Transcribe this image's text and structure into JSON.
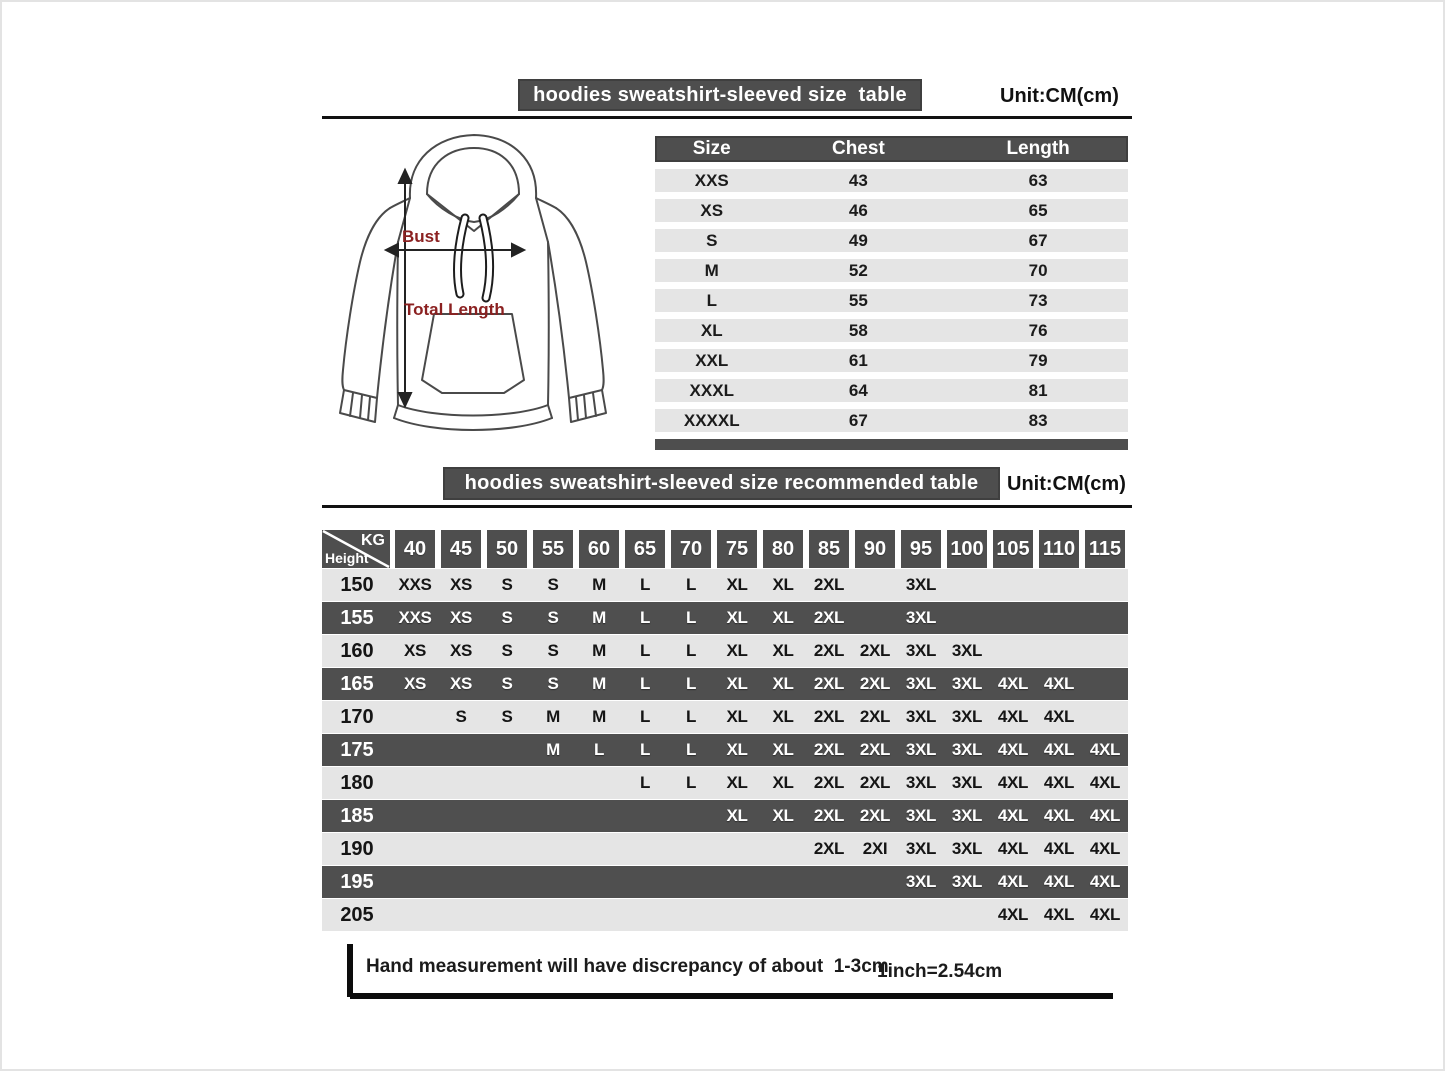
{
  "colors": {
    "bar_dark": "#4e4e4e",
    "row_light": "#e5e5e5",
    "row_dark": "#4f4f4f",
    "accent_red": "#8b2121",
    "line_black": "#111111"
  },
  "size_table_section": {
    "title": "hoodies sweatshirt-sleeved size  table",
    "unit": "Unit:CM(cm)",
    "columns": [
      "Size",
      "Chest",
      "Length"
    ],
    "rows": [
      [
        "XXS",
        "43",
        "63"
      ],
      [
        "XS",
        "46",
        "65"
      ],
      [
        "S",
        "49",
        "67"
      ],
      [
        "M",
        "52",
        "70"
      ],
      [
        "L",
        "55",
        "73"
      ],
      [
        "XL",
        "58",
        "76"
      ],
      [
        "XXL",
        "61",
        "79"
      ],
      [
        "XXXL",
        "64",
        "81"
      ],
      [
        "XXXXL",
        "67",
        "83"
      ]
    ]
  },
  "diagram": {
    "bust_label": "Bust",
    "total_length_label": "Total Length"
  },
  "recommended_section": {
    "title": "hoodies sweatshirt-sleeved size recommended table",
    "unit": "Unit:CM(cm)",
    "corner_top_right": "KG",
    "corner_bottom_left": "Height",
    "weight_columns": [
      "40",
      "45",
      "50",
      "55",
      "60",
      "65",
      "70",
      "75",
      "80",
      "85",
      "90",
      "95",
      "100",
      "105",
      "110",
      "115"
    ],
    "rows": [
      {
        "height": "150",
        "values": [
          "XXS",
          "XS",
          "S",
          "S",
          "M",
          "L",
          "L",
          "XL",
          "XL",
          "2XL",
          "",
          "3XL",
          "",
          "",
          "",
          ""
        ]
      },
      {
        "height": "155",
        "values": [
          "XXS",
          "XS",
          "S",
          "S",
          "M",
          "L",
          "L",
          "XL",
          "XL",
          "2XL",
          "",
          "3XL",
          "",
          "",
          "",
          ""
        ]
      },
      {
        "height": "160",
        "values": [
          "XS",
          "XS",
          "S",
          "S",
          "M",
          "L",
          "L",
          "XL",
          "XL",
          "2XL",
          "2XL",
          "3XL",
          "3XL",
          "",
          "",
          ""
        ]
      },
      {
        "height": "165",
        "values": [
          "XS",
          "XS",
          "S",
          "S",
          "M",
          "L",
          "L",
          "XL",
          "XL",
          "2XL",
          "2XL",
          "3XL",
          "3XL",
          "4XL",
          "4XL",
          ""
        ]
      },
      {
        "height": "170",
        "values": [
          "",
          "S",
          "S",
          "M",
          "M",
          "L",
          "L",
          "XL",
          "XL",
          "2XL",
          "2XL",
          "3XL",
          "3XL",
          "4XL",
          "4XL",
          ""
        ]
      },
      {
        "height": "175",
        "values": [
          "",
          "",
          "",
          "M",
          "L",
          "L",
          "L",
          "XL",
          "XL",
          "2XL",
          "2XL",
          "3XL",
          "3XL",
          "4XL",
          "4XL",
          "4XL"
        ]
      },
      {
        "height": "180",
        "values": [
          "",
          "",
          "",
          "",
          "",
          "L",
          "L",
          "XL",
          "XL",
          "2XL",
          "2XL",
          "3XL",
          "3XL",
          "4XL",
          "4XL",
          "4XL"
        ]
      },
      {
        "height": "185",
        "values": [
          "",
          "",
          "",
          "",
          "",
          "",
          "",
          "XL",
          "XL",
          "2XL",
          "2XL",
          "3XL",
          "3XL",
          "4XL",
          "4XL",
          "4XL"
        ]
      },
      {
        "height": "190",
        "values": [
          "",
          "",
          "",
          "",
          "",
          "",
          "",
          "",
          "",
          "2XL",
          "2XI",
          "3XL",
          "3XL",
          "4XL",
          "4XL",
          "4XL"
        ]
      },
      {
        "height": "195",
        "values": [
          "",
          "",
          "",
          "",
          "",
          "",
          "",
          "",
          "",
          "",
          "",
          "3XL",
          "3XL",
          "4XL",
          "4XL",
          "4XL"
        ]
      },
      {
        "height": "205",
        "values": [
          "",
          "",
          "",
          "",
          "",
          "",
          "",
          "",
          "",
          "",
          "",
          "",
          "",
          "4XL",
          "4XL",
          "4XL"
        ]
      }
    ]
  },
  "footer": {
    "note": "Hand measurement will have discrepancy of about  1-3cm",
    "conversion": "1inch=2.54cm"
  }
}
